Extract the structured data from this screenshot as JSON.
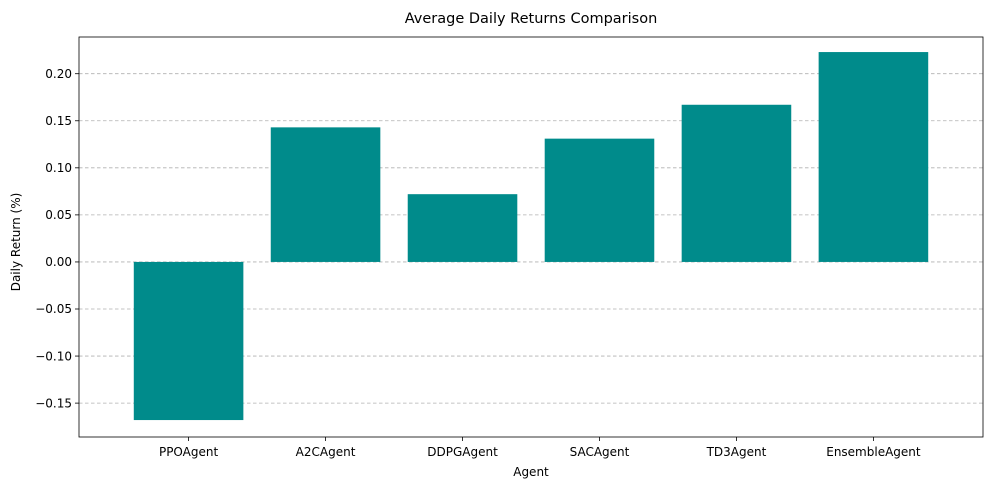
{
  "chart_data": {
    "type": "bar",
    "title": "Average Daily Returns Comparison",
    "xlabel": "Agent",
    "ylabel": "Daily Return (%)",
    "categories": [
      "PPOAgent",
      "A2CAgent",
      "DDPGAgent",
      "SACAgent",
      "TD3Agent",
      "EnsembleAgent"
    ],
    "values": [
      -0.168,
      0.143,
      0.072,
      0.131,
      0.167,
      0.223
    ],
    "ylim": [
      -0.186,
      0.239
    ],
    "yticks": [
      -0.15,
      -0.1,
      -0.05,
      0.0,
      0.05,
      0.1,
      0.15,
      0.2
    ],
    "ytick_labels": [
      "−0.15",
      "−0.10",
      "−0.05",
      "0.00",
      "0.05",
      "0.10",
      "0.15",
      "0.20"
    ],
    "bar_color": "#008b8b",
    "grid": "y-dashed",
    "grid_color": "#b0b0b0"
  }
}
